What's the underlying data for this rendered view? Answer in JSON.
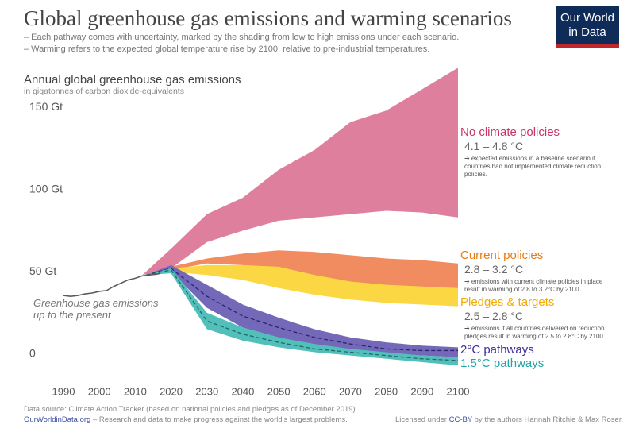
{
  "header": {
    "title": "Global greenhouse gas emissions and warming scenarios",
    "subtitle": [
      "– Each pathway comes with uncertainty, marked by the shading from low to high emissions under each scenario.",
      "– Warming refers to the expected global temperature rise by 2100, relative to pre-industrial temperatures."
    ],
    "logo": [
      "Our World",
      "in Data"
    ]
  },
  "chart_data": {
    "type": "area",
    "y_title": "Annual global greenhouse gas emissions",
    "y_subtitle": "in gigatonnes of carbon dioxide-equivalents",
    "xlim": [
      1990,
      2100
    ],
    "xticks": [
      1990,
      2000,
      2010,
      2020,
      2030,
      2040,
      2050,
      2060,
      2070,
      2080,
      2090,
      2100
    ],
    "ylim": [
      -20,
      180
    ],
    "yticks": [
      0,
      {
        "value": 50,
        "label": "50 Gt"
      },
      {
        "value": 100,
        "label": "100 Gt"
      },
      {
        "value": 150,
        "label": "150 Gt"
      }
    ],
    "grid": false,
    "history": {
      "name": "Greenhouse gas emissions up to the present",
      "color": "#5b5b5b",
      "x": [
        1990,
        1992,
        1994,
        1996,
        1998,
        2000,
        2002,
        2004,
        2006,
        2008,
        2010,
        2012,
        2014,
        2016,
        2017
      ],
      "values": [
        35.5,
        35,
        35.5,
        36.5,
        37,
        38,
        38.5,
        41,
        43,
        45,
        46,
        47.5,
        48,
        48.5,
        49
      ]
    },
    "series": [
      {
        "name": "No climate policies",
        "color": "#de7f9d",
        "label_color": "#c8336a",
        "temperature": "4.1 – 4.8 °C",
        "note": "➔ expected emissions in a baseline scenario if countries had not implemented climate reduction policies.",
        "x": [
          2012,
          2020,
          2030,
          2040,
          2050,
          2060,
          2070,
          2080,
          2090,
          2100
        ],
        "low": [
          48,
          52,
          68,
          75,
          81,
          83,
          85,
          87,
          86,
          83
        ],
        "high": [
          48,
          64,
          85,
          95,
          112,
          124,
          141,
          148,
          161,
          174
        ]
      },
      {
        "name": "Current policies",
        "color": "#f08c5f",
        "label_color": "#e97a12",
        "temperature": "2.8 – 3.2 °C",
        "note": "➔ emissions with current climate policies in place result in warming of 2.8 to 3.2°C by 2100.",
        "x": [
          2013,
          2020,
          2030,
          2040,
          2050,
          2060,
          2070,
          2080,
          2090,
          2100
        ],
        "low": [
          48,
          51,
          55,
          54,
          51,
          44,
          41,
          39,
          39,
          39
        ],
        "high": [
          48,
          53,
          58,
          61,
          63,
          62,
          60,
          58,
          57,
          55
        ]
      },
      {
        "name": "Pledges & targets",
        "color": "#fbd843",
        "label_color": "#f2a900",
        "temperature": "2.5 – 2.8 °C",
        "note": "➔ emissions if all countries delivered on reduction pledges result in warming of 2.5 to 2.8°C by 2100.",
        "x": [
          2013,
          2020,
          2030,
          2040,
          2050,
          2060,
          2070,
          2080,
          2090,
          2100
        ],
        "low": [
          48,
          50,
          48,
          45,
          40,
          36,
          33,
          31,
          30,
          29
        ],
        "high": [
          48,
          52,
          54,
          54,
          53,
          48,
          44,
          42,
          41,
          40
        ]
      },
      {
        "name": "2°C pathways",
        "color": "#7468b9",
        "label_color": "#3b2f9f",
        "median_color": "#2b2570",
        "x": [
          2013,
          2020,
          2030,
          2040,
          2050,
          2060,
          2070,
          2080,
          2090,
          2100
        ],
        "low": [
          48,
          50,
          28,
          16,
          10,
          5,
          2,
          0,
          -1,
          -2
        ],
        "high": [
          48,
          54,
          42,
          30,
          22,
          15,
          10,
          7,
          5,
          4
        ],
        "median": [
          48,
          52,
          35,
          23,
          16,
          10,
          6,
          3,
          2,
          2
        ]
      },
      {
        "name": "1.5°C pathways",
        "color": "#52bfba",
        "label_color": "#23a5a3",
        "median_color": "#1d6b66",
        "x": [
          2013,
          2020,
          2030,
          2040,
          2050,
          2060,
          2070,
          2080,
          2090,
          2100
        ],
        "low": [
          48,
          49,
          15,
          8,
          4,
          1,
          -1,
          -3,
          -5,
          -7
        ],
        "high": [
          48,
          52,
          25,
          16,
          10,
          6,
          3,
          1,
          -1,
          -2
        ],
        "median": [
          48,
          51,
          20,
          12,
          7,
          3,
          1,
          -1,
          -3,
          -4
        ]
      }
    ]
  },
  "footer": {
    "source": "Data source: Climate Action Tracker (based on national policies and pledges as of December 2019).",
    "site": "OurWorldinData.org",
    "tagline": "– Research and data to make progress against the world's largest problems.",
    "license": [
      "Licensed under",
      "CC-BY",
      "by the authors Hannah Ritchie & Max Roser."
    ]
  }
}
